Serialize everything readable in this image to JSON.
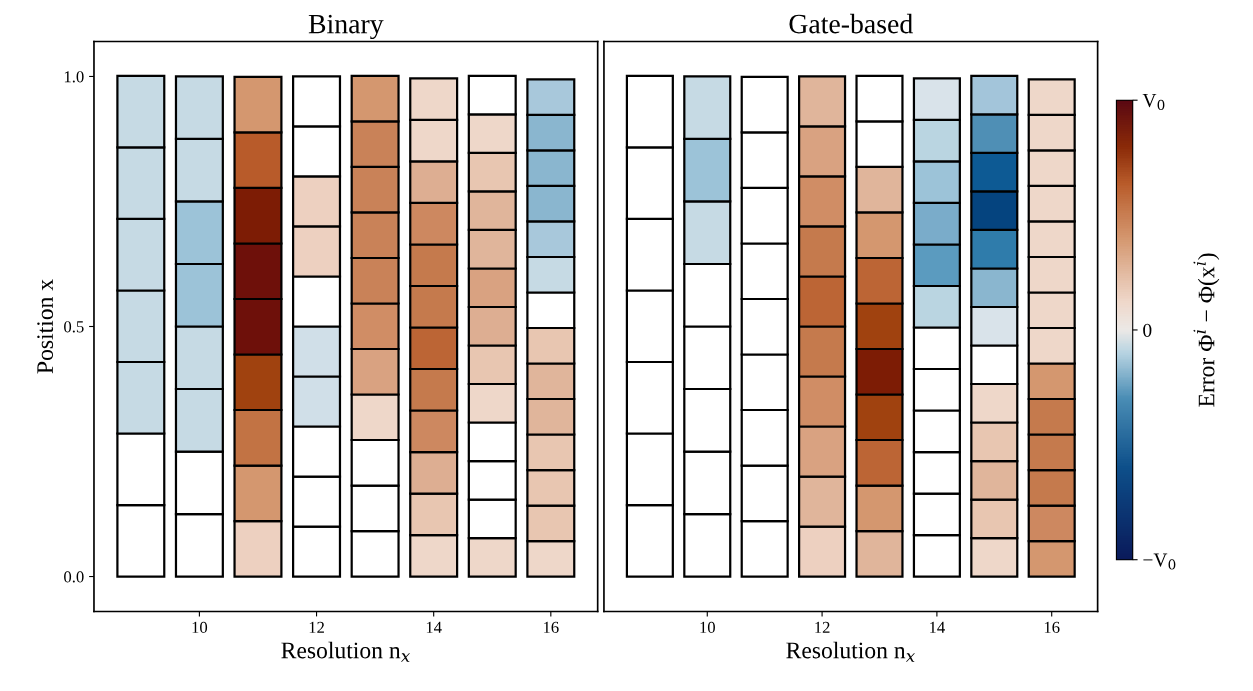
{
  "chart_data": [
    {
      "type": "bar",
      "stacked": true,
      "title": "Binary",
      "xlabel": "Resolution n$_{x}$",
      "ylabel": "Position x",
      "x": [
        9,
        10,
        11,
        12,
        13,
        14,
        15,
        16
      ],
      "xlim": [
        8.2,
        16.8
      ],
      "xticks": [
        10,
        12,
        14,
        16
      ],
      "ylim": [
        -0.07,
        1.07
      ],
      "yticks": [
        {
          "value": 0,
          "label": "0.0"
        },
        {
          "value": 0.5,
          "label": "0.5"
        },
        {
          "value": 1,
          "label": "1.0"
        }
      ],
      "series": [
        {
          "values": [
            0.143,
            0.125,
            0.111,
            0.1,
            0.091,
            0.083,
            0.077,
            0.071
          ],
          "colors": [
            "#ffffff",
            "#ffffff",
            "#edd0c0",
            "#ffffff",
            "#ffffff",
            "#eed7c9",
            "#eed7c9",
            "#eed7c9"
          ]
        },
        {
          "values": [
            0.143,
            0.125,
            0.111,
            0.1,
            0.091,
            0.083,
            0.077,
            0.071
          ],
          "colors": [
            "#ffffff",
            "#ffffff",
            "#d4976f",
            "#ffffff",
            "#ffffff",
            "#e8c6b1",
            "#ffffff",
            "#e8c6b1"
          ]
        },
        {
          "values": [
            0.143,
            0.125,
            0.111,
            0.1,
            0.091,
            0.083,
            0.077,
            0.071
          ],
          "colors": [
            "#c6dae4",
            "#c6dae4",
            "#c27344",
            "#ffffff",
            "#ffffff",
            "#ddae92",
            "#ffffff",
            "#e8c6b1"
          ]
        },
        {
          "values": [
            0.143,
            0.125,
            0.111,
            0.1,
            0.091,
            0.083,
            0.077,
            0.071
          ],
          "colors": [
            "#c6dae4",
            "#c6dae4",
            "#a0420f",
            "#d0dfe8",
            "#eed7c9",
            "#cd8860",
            "#ffffff",
            "#e8c6b1"
          ]
        },
        {
          "values": [
            0.143,
            0.125,
            0.111,
            0.1,
            0.091,
            0.083,
            0.077,
            0.071
          ],
          "colors": [
            "#c6dae4",
            "#9cc3d8",
            "#6e100a",
            "#d0dfe8",
            "#d9a281",
            "#c57a4d",
            "#eed7c9",
            "#e0b59b"
          ]
        },
        {
          "values": [
            0.143,
            0.125,
            0.111,
            0.1,
            0.091,
            0.083,
            0.077,
            0.071
          ],
          "colors": [
            "#c6dae4",
            "#9cc3d8",
            "#6e100a",
            "#ffffff",
            "#d08d65",
            "#bc6535",
            "#e8c6b1",
            "#e0b59b"
          ]
        },
        {
          "values": [
            0.143,
            0.125,
            0.111,
            0.1,
            0.091,
            0.083,
            0.077,
            0.071
          ],
          "colors": [
            "#c6dae4",
            "#c6dae4",
            "#7d1c05",
            "#edd0c0",
            "#c98258",
            "#c57a4d",
            "#ddae92",
            "#e8c6b1"
          ]
        },
        {
          "values": [
            null,
            0.125,
            0.111,
            0.1,
            0.091,
            0.083,
            0.077,
            0.071
          ],
          "colors": [
            null,
            "#c6dae4",
            "#b85b2a",
            "#edd0c0",
            "#c98258",
            "#c57a4d",
            "#d9a281",
            "#ffffff"
          ]
        },
        {
          "values": [
            null,
            null,
            0.111,
            0.1,
            0.091,
            0.083,
            0.077,
            0.071
          ],
          "colors": [
            null,
            null,
            "#d4976f",
            "#ffffff",
            "#c98258",
            "#cd8860",
            "#e0b59b",
            "#c6dae4"
          ]
        },
        {
          "values": [
            null,
            null,
            null,
            0.1,
            0.091,
            0.083,
            0.077,
            0.071
          ],
          "colors": [
            null,
            null,
            null,
            "#ffffff",
            "#c98258",
            "#ddae92",
            "#e0b59b",
            "#a8c8db"
          ]
        },
        {
          "values": [
            null,
            null,
            null,
            null,
            0.091,
            0.083,
            0.077,
            0.071
          ],
          "colors": [
            null,
            null,
            null,
            null,
            "#d4976f",
            "#eed7c9",
            "#e8c6b1",
            "#8ab6cf"
          ]
        },
        {
          "values": [
            null,
            null,
            null,
            null,
            null,
            0.083,
            0.077,
            0.071
          ],
          "colors": [
            null,
            null,
            null,
            null,
            null,
            "#eed7c9",
            "#eed7c9",
            "#8ab6cf"
          ]
        },
        {
          "values": [
            null,
            null,
            null,
            null,
            null,
            null,
            0.077,
            0.071
          ],
          "colors": [
            null,
            null,
            null,
            null,
            null,
            null,
            "#ffffff",
            "#8ab6cf"
          ]
        },
        {
          "values": [
            null,
            null,
            null,
            null,
            null,
            null,
            null,
            0.071
          ],
          "colors": [
            null,
            null,
            null,
            null,
            null,
            null,
            null,
            "#a8c8db"
          ]
        }
      ]
    },
    {
      "type": "bar",
      "stacked": true,
      "title": "Gate-based",
      "xlabel": "Resolution n$_{x}$",
      "clabel": "Error Φ$^{i}$ − Φ(x$^{i}$)",
      "x": [
        9,
        10,
        11,
        12,
        13,
        14,
        15,
        16
      ],
      "xlim": [
        8.2,
        16.8
      ],
      "xticks": [
        10,
        12,
        14,
        16
      ],
      "ylim": [
        -0.07,
        1.07
      ],
      "tick_labels": "x",
      "annotations": [
        "−V$_{0}$",
        "0",
        "V$_{0}$"
      ],
      "series": [
        {
          "values": [
            0.143,
            0.125,
            0.111,
            0.1,
            0.091,
            0.083,
            0.077,
            0.071
          ],
          "colors": [
            "#ffffff",
            "#ffffff",
            "#ffffff",
            "#edd0c0",
            "#e0b59b",
            "#ffffff",
            "#eed7c9",
            "#d4976f"
          ]
        },
        {
          "values": [
            0.143,
            0.125,
            0.111,
            0.1,
            0.091,
            0.083,
            0.077,
            0.071
          ],
          "colors": [
            "#ffffff",
            "#ffffff",
            "#ffffff",
            "#e0b59b",
            "#d4976f",
            "#ffffff",
            "#e8c6b1",
            "#cd8860"
          ]
        },
        {
          "values": [
            0.143,
            0.125,
            0.111,
            0.1,
            0.091,
            0.083,
            0.077,
            0.071
          ],
          "colors": [
            "#ffffff",
            "#ffffff",
            "#ffffff",
            "#d9a281",
            "#bc6535",
            "#ffffff",
            "#e0b59b",
            "#c57a4d"
          ]
        },
        {
          "values": [
            0.143,
            0.125,
            0.111,
            0.1,
            0.091,
            0.083,
            0.077,
            0.071
          ],
          "colors": [
            "#ffffff",
            "#ffffff",
            "#ffffff",
            "#d08d65",
            "#a0420f",
            "#ffffff",
            "#e8c6b1",
            "#c57a4d"
          ]
        },
        {
          "values": [
            0.143,
            0.125,
            0.111,
            0.1,
            0.091,
            0.083,
            0.077,
            0.071
          ],
          "colors": [
            "#ffffff",
            "#ffffff",
            "#ffffff",
            "#c57a4d",
            "#7d1c05",
            "#ffffff",
            "#eed7c9",
            "#c57a4d"
          ]
        },
        {
          "values": [
            0.143,
            0.125,
            0.111,
            0.1,
            0.091,
            0.083,
            0.077,
            0.071
          ],
          "colors": [
            "#ffffff",
            "#c6dae4",
            "#ffffff",
            "#bc6535",
            "#a0420f",
            "#ffffff",
            "#ffffff",
            "#d4976f"
          ]
        },
        {
          "values": [
            0.143,
            0.125,
            0.111,
            0.1,
            0.091,
            0.083,
            0.077,
            0.071
          ],
          "colors": [
            "#ffffff",
            "#9cc3d8",
            "#ffffff",
            "#c57a4d",
            "#bc6535",
            "#bad5e1",
            "#d9e3ea",
            "#eed7c9"
          ]
        },
        {
          "values": [
            null,
            0.125,
            0.111,
            0.1,
            0.091,
            0.083,
            0.077,
            0.071
          ],
          "colors": [
            null,
            "#c6dae4",
            "#ffffff",
            "#d08d65",
            "#d4976f",
            "#5b9bbf",
            "#8ab6cf",
            "#eed7c9"
          ]
        },
        {
          "values": [
            null,
            null,
            0.111,
            0.1,
            0.091,
            0.083,
            0.077,
            0.071
          ],
          "colors": [
            null,
            null,
            "#ffffff",
            "#d9a281",
            "#e0b59b",
            "#7aacca",
            "#2f7cab",
            "#eed7c9"
          ]
        },
        {
          "values": [
            null,
            null,
            null,
            0.1,
            0.091,
            0.083,
            0.077,
            0.071
          ],
          "colors": [
            null,
            null,
            null,
            "#e0b59b",
            "#ffffff",
            "#9cc3d8",
            "#05447f",
            "#eed7c9"
          ]
        },
        {
          "values": [
            null,
            null,
            null,
            null,
            0.091,
            0.083,
            0.077,
            0.071
          ],
          "colors": [
            null,
            null,
            null,
            null,
            "#ffffff",
            "#bad5e1",
            "#0d5a94",
            "#eed7c9"
          ]
        },
        {
          "values": [
            null,
            null,
            null,
            null,
            null,
            0.083,
            0.077,
            0.071
          ],
          "colors": [
            null,
            null,
            null,
            null,
            null,
            "#d9e3ea",
            "#4f8fb5",
            "#eed7c9"
          ]
        },
        {
          "values": [
            null,
            null,
            null,
            null,
            null,
            null,
            0.077,
            0.071
          ],
          "colors": [
            null,
            null,
            null,
            null,
            null,
            null,
            "#a3c5da",
            "#eed7c9"
          ]
        },
        {
          "values": [
            null,
            null,
            null,
            null,
            null,
            null,
            null,
            0.071
          ],
          "colors": [
            null,
            null,
            null,
            null,
            null,
            null,
            null,
            "#eed7c9"
          ]
        }
      ]
    }
  ]
}
